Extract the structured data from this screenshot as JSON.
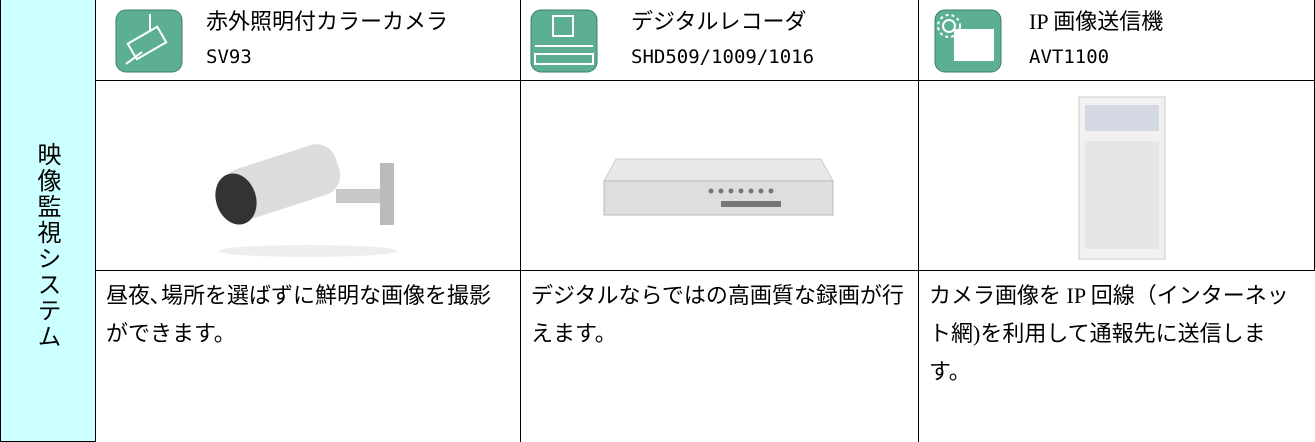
{
  "table": {
    "side_label": "映像監視システム",
    "columns": [
      {
        "name": "赤外照明付カラーカメラ",
        "model": "SV93",
        "description": "昼夜､場所を選ばずに鮮明な画像を撮影ができます。"
      },
      {
        "name": "デジタルレコーダ",
        "model": "SHD509/1009/1016",
        "description": "デジタルならではの高画質な録画が行えます。"
      },
      {
        "name": "IP 画像送信機",
        "model": "AVT1100",
        "description": "カメラ画像を IP 回線（インターネット網)を利用して通報先に送信します。"
      }
    ]
  }
}
